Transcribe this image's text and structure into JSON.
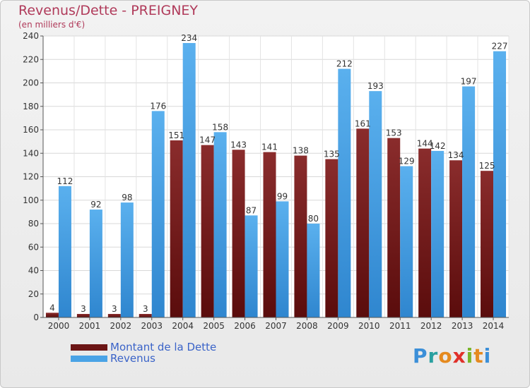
{
  "title": "Revenus/Dette - PREIGNEY",
  "subtitle": "(en milliers d'€)",
  "legend": [
    {
      "label": "Montant de la Dette",
      "color": "#7a1f1f"
    },
    {
      "label": "Revenus",
      "color": "#4aa3e6"
    }
  ],
  "logo": {
    "letters": [
      "P",
      "r",
      "o",
      "x",
      "i",
      "t",
      "i"
    ],
    "colors": [
      "#3b8fd8",
      "#2aa0a0",
      "#e58a1f",
      "#e0302a",
      "#7ab52a",
      "#e58a1f",
      "#3b8fd8"
    ]
  },
  "chart_data": {
    "type": "bar",
    "title": "Revenus/Dette - PREIGNEY",
    "categories": [
      "2000",
      "2001",
      "2002",
      "2003",
      "2004",
      "2005",
      "2006",
      "2007",
      "2008",
      "2009",
      "2010",
      "2011",
      "2012",
      "2013",
      "2014"
    ],
    "series": [
      {
        "name": "Montant de la Dette",
        "color": "#7a1f1f",
        "values": [
          4,
          3,
          3,
          3,
          151,
          147,
          143,
          141,
          138,
          135,
          161,
          153,
          144,
          134,
          125
        ]
      },
      {
        "name": "Revenus",
        "color": "#4aa3e6",
        "values": [
          112,
          92,
          98,
          176,
          234,
          158,
          87,
          99,
          80,
          212,
          193,
          129,
          142,
          197,
          227
        ]
      }
    ],
    "ylim": [
      0,
      240
    ],
    "yticks": [
      0,
      20,
      40,
      60,
      80,
      100,
      120,
      140,
      160,
      180,
      200,
      220,
      240
    ],
    "grid": true
  }
}
